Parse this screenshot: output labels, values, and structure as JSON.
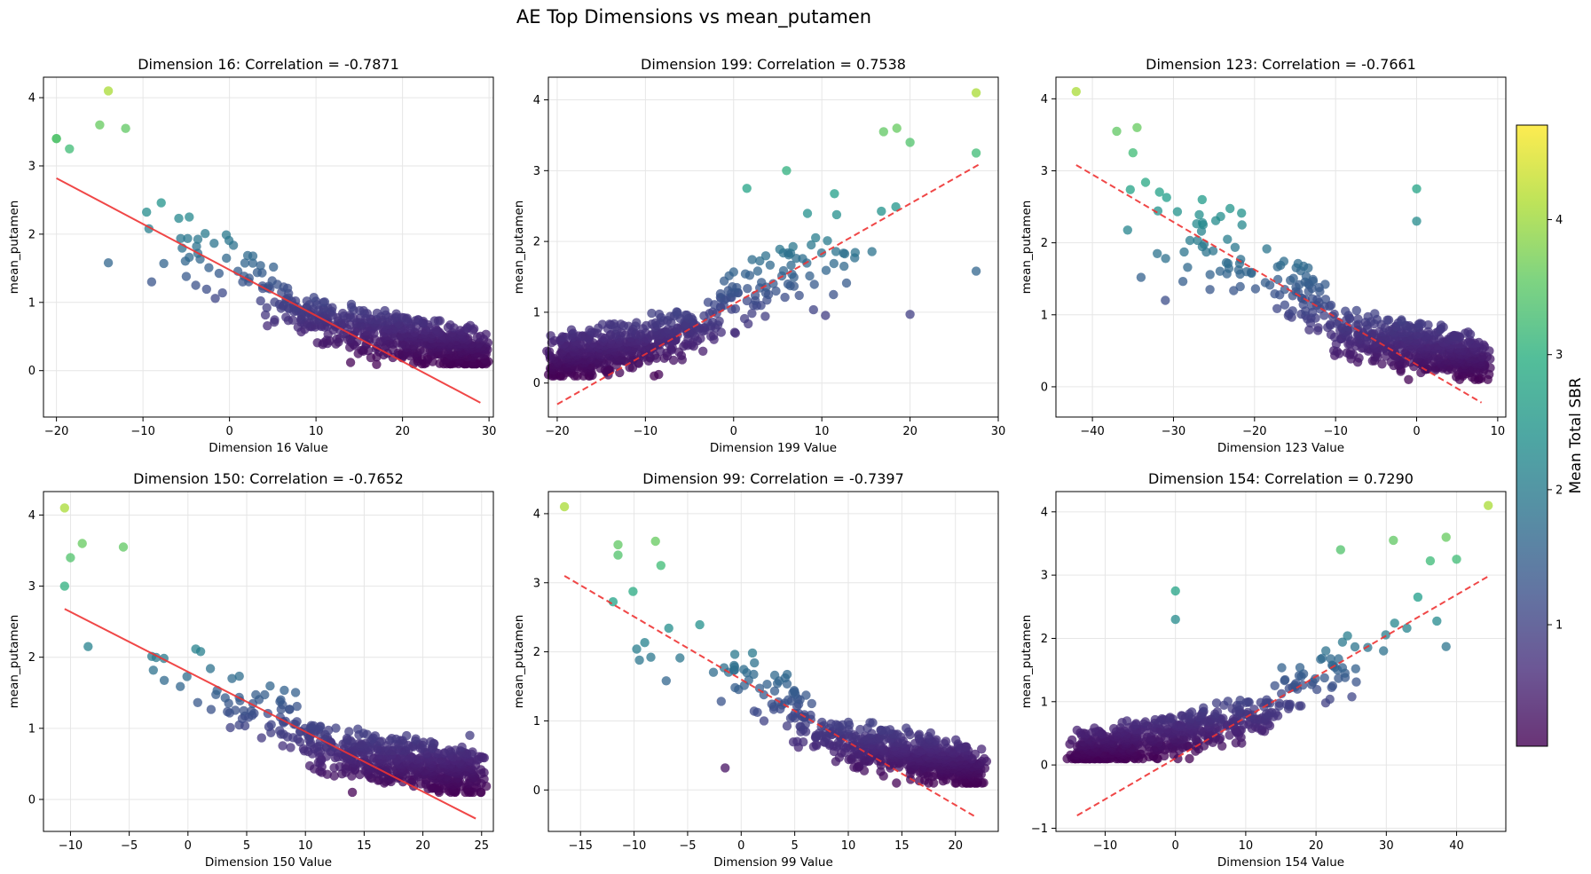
{
  "figure": {
    "title": "AE Top Dimensions vs mean_putamen",
    "colorbar": {
      "label": "Mean Total SBR",
      "colormap": "viridis",
      "range": [
        0.1,
        4.7
      ],
      "ticks": [
        1,
        2,
        3,
        4
      ],
      "tick_labels": [
        "1",
        "2",
        "3",
        "4"
      ]
    }
  },
  "chart_data": [
    {
      "type": "scatter",
      "title": "Dimension 16: Correlation = -0.7871",
      "xlabel": "Dimension 16 Value",
      "ylabel": "mean_putamen",
      "xlim": [
        -21.5,
        30.5
      ],
      "ylim": [
        -0.68,
        4.3
      ],
      "xticks": [
        -20,
        -10,
        0,
        10,
        20,
        30
      ],
      "yticks": [
        0,
        1,
        2,
        3,
        4
      ],
      "grid": true,
      "slope": -1,
      "trend_line": {
        "style": "solid",
        "color": "#ee3333",
        "x": [
          -20,
          29
        ],
        "y": [
          2.82,
          -0.47
        ]
      },
      "anchors": [
        [
          -14,
          4.1
        ],
        [
          -15,
          3.6
        ],
        [
          -20,
          3.4
        ],
        [
          -12,
          3.55
        ],
        [
          -18.5,
          3.25
        ],
        [
          29,
          0.22
        ],
        [
          26.5,
          0.49
        ],
        [
          14,
          0.12
        ],
        [
          17,
          0.09
        ],
        [
          -14,
          1.58
        ],
        [
          -5,
          1.38
        ],
        [
          -9,
          1.3
        ],
        [
          -20,
          3.4
        ]
      ],
      "point_count": 600,
      "point_colors": "mean_putamen",
      "seed": 16
    },
    {
      "type": "scatter",
      "title": "Dimension 199: Correlation = 0.7538",
      "xlabel": "Dimension 199 Value",
      "ylabel": "mean_putamen",
      "xlim": [
        -21,
        30
      ],
      "ylim": [
        -0.48,
        4.32
      ],
      "xticks": [
        -20,
        -10,
        0,
        10,
        20,
        30
      ],
      "yticks": [
        0,
        1,
        2,
        3,
        4
      ],
      "grid": true,
      "slope": 1,
      "trend_line": {
        "style": "dashed",
        "color": "#ee3333",
        "x": [
          -20,
          28
        ],
        "y": [
          -0.3,
          3.1
        ]
      },
      "anchors": [
        [
          27.5,
          4.1
        ],
        [
          27.5,
          3.25
        ],
        [
          17,
          3.55
        ],
        [
          18.5,
          3.6
        ],
        [
          20,
          3.4
        ],
        [
          27.5,
          1.58
        ],
        [
          -19.5,
          0.2
        ],
        [
          -9,
          0.1
        ],
        [
          -8.5,
          0.12
        ],
        [
          1.5,
          2.75
        ],
        [
          6,
          3.0
        ],
        [
          20,
          0.97
        ]
      ],
      "point_count": 600,
      "point_colors": "mean_putamen",
      "seed": 199
    },
    {
      "type": "scatter",
      "title": "Dimension 123: Correlation = -0.7661",
      "xlabel": "Dimension 123 Value",
      "ylabel": "mean_putamen",
      "xlim": [
        -44.5,
        11
      ],
      "ylim": [
        -0.42,
        4.3
      ],
      "xticks": [
        -40,
        -30,
        -20,
        -10,
        0,
        10
      ],
      "yticks": [
        0,
        1,
        2,
        3,
        4
      ],
      "grid": true,
      "slope": -1,
      "trend_line": {
        "style": "dashed",
        "color": "#ee3333",
        "x": [
          -42,
          8
        ],
        "y": [
          3.08,
          -0.22
        ]
      },
      "anchors": [
        [
          -42,
          4.1
        ],
        [
          -37,
          3.55
        ],
        [
          -34.5,
          3.6
        ],
        [
          -35,
          3.25
        ],
        [
          8,
          0.31
        ],
        [
          0,
          2.75
        ],
        [
          0,
          2.3
        ],
        [
          -34,
          1.52
        ],
        [
          -31,
          1.2
        ],
        [
          -1,
          0.1
        ],
        [
          -32,
          1.85
        ]
      ],
      "point_count": 600,
      "point_colors": "mean_putamen",
      "seed": 123
    },
    {
      "type": "scatter",
      "title": "Dimension 150: Correlation = -0.7652",
      "xlabel": "Dimension 150 Value",
      "ylabel": "mean_putamen",
      "xlim": [
        -12.3,
        26
      ],
      "ylim": [
        -0.45,
        4.33
      ],
      "xticks": [
        -10,
        -5,
        0,
        5,
        10,
        15,
        20,
        25
      ],
      "yticks": [
        0,
        1,
        2,
        3,
        4
      ],
      "grid": true,
      "slope": -1,
      "trend_line": {
        "style": "solid",
        "color": "#ee3333",
        "x": [
          -10.5,
          24.5
        ],
        "y": [
          2.68,
          -0.27
        ]
      },
      "anchors": [
        [
          -10.5,
          4.1
        ],
        [
          -9,
          3.6
        ],
        [
          -10.5,
          3.0
        ],
        [
          -10,
          3.4
        ],
        [
          -5.5,
          3.55
        ],
        [
          24.5,
          0.48
        ],
        [
          24,
          0.9
        ],
        [
          14,
          0.1
        ],
        [
          24,
          0.12
        ],
        [
          -8.5,
          2.15
        ]
      ],
      "point_count": 600,
      "point_colors": "mean_putamen",
      "seed": 150
    },
    {
      "type": "scatter",
      "title": "Dimension 99: Correlation = -0.7397",
      "xlabel": "Dimension 99 Value",
      "ylabel": "mean_putamen",
      "xlim": [
        -18,
        24
      ],
      "ylim": [
        -0.6,
        4.32
      ],
      "xticks": [
        -15,
        -10,
        -5,
        0,
        5,
        10,
        15,
        20
      ],
      "yticks": [
        0,
        1,
        2,
        3,
        4
      ],
      "grid": true,
      "slope": -1,
      "trend_line": {
        "style": "dashed",
        "color": "#ee3333",
        "x": [
          -16.5,
          22
        ],
        "y": [
          3.1,
          -0.4
        ]
      },
      "anchors": [
        [
          -16.5,
          4.1
        ],
        [
          -11.5,
          3.55
        ],
        [
          -11.5,
          3.4
        ],
        [
          -7.5,
          3.25
        ],
        [
          -8,
          3.6
        ],
        [
          22,
          0.37
        ],
        [
          14.5,
          0.1
        ],
        [
          -9.5,
          1.88
        ],
        [
          -1.5,
          0.32
        ],
        [
          -7,
          1.58
        ],
        [
          19,
          0.49
        ]
      ],
      "point_count": 600,
      "point_colors": "mean_putamen",
      "seed": 99
    },
    {
      "type": "scatter",
      "title": "Dimension 154: Correlation = 0.7290",
      "xlabel": "Dimension 154 Value",
      "ylabel": "mean_putamen",
      "xlim": [
        -17,
        47
      ],
      "ylim": [
        -1.05,
        4.32
      ],
      "xticks": [
        -10,
        0,
        10,
        20,
        30,
        40
      ],
      "yticks": [
        -1,
        0,
        1,
        2,
        3,
        4
      ],
      "grid": true,
      "slope": 1,
      "trend_line": {
        "style": "dashed",
        "color": "#ee3333",
        "x": [
          -14,
          44.5
        ],
        "y": [
          -0.8,
          2.98
        ]
      },
      "anchors": [
        [
          44.5,
          4.1
        ],
        [
          38.5,
          3.6
        ],
        [
          40,
          3.25
        ],
        [
          31,
          3.55
        ],
        [
          23.5,
          3.4
        ],
        [
          -14,
          0.55
        ],
        [
          0,
          2.75
        ],
        [
          0,
          2.3
        ],
        [
          2,
          0.1
        ],
        [
          -9,
          0.37
        ],
        [
          38.5,
          1.87
        ]
      ],
      "point_count": 600,
      "point_colors": "mean_putamen",
      "seed": 154
    }
  ]
}
